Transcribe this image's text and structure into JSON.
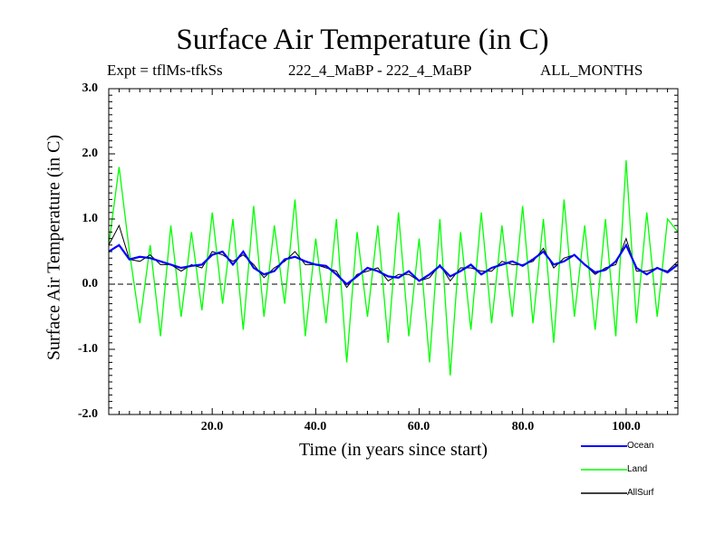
{
  "header": {
    "title": "Surface Air Temperature (in C)",
    "expt": "Expt = tflMs-tfkSs",
    "period": "222_4_MaBP - 222_4_MaBP",
    "months": "ALL_MONTHS"
  },
  "chart_data": {
    "type": "line",
    "title": "Surface Air Temperature (in C)",
    "xlabel": "Time (in years since start)",
    "ylabel": "Surface Air Temperature (in C)",
    "xlim": [
      0,
      110
    ],
    "ylim": [
      -2.0,
      3.0
    ],
    "x_ticks": [
      "20.0",
      "40.0",
      "60.0",
      "80.0",
      "100.0"
    ],
    "y_ticks": [
      "3.0",
      "2.0",
      "1.0",
      "0.0",
      "-1.0",
      "-2.0"
    ],
    "reference_line": 0.0,
    "x": [
      0,
      2,
      4,
      6,
      8,
      10,
      12,
      14,
      16,
      18,
      20,
      22,
      24,
      26,
      28,
      30,
      32,
      34,
      36,
      38,
      40,
      42,
      44,
      46,
      48,
      50,
      52,
      54,
      56,
      58,
      60,
      62,
      64,
      66,
      68,
      70,
      72,
      74,
      76,
      78,
      80,
      82,
      84,
      86,
      88,
      90,
      92,
      94,
      96,
      98,
      100,
      102,
      104,
      106,
      108,
      110
    ],
    "series": [
      {
        "name": "Ocean",
        "color": "#0000ff",
        "values": [
          0.5,
          0.6,
          0.38,
          0.42,
          0.4,
          0.35,
          0.3,
          0.25,
          0.28,
          0.3,
          0.45,
          0.5,
          0.3,
          0.5,
          0.25,
          0.15,
          0.2,
          0.38,
          0.42,
          0.35,
          0.3,
          0.28,
          0.15,
          0.0,
          0.12,
          0.25,
          0.2,
          0.12,
          0.1,
          0.2,
          0.05,
          0.15,
          0.28,
          0.12,
          0.2,
          0.3,
          0.15,
          0.25,
          0.3,
          0.35,
          0.28,
          0.38,
          0.5,
          0.3,
          0.35,
          0.45,
          0.3,
          0.18,
          0.22,
          0.35,
          0.6,
          0.25,
          0.15,
          0.25,
          0.18,
          0.3
        ]
      },
      {
        "name": "Land",
        "color": "#00ff00",
        "values": [
          0.6,
          1.8,
          0.5,
          -0.6,
          0.6,
          -0.8,
          0.9,
          -0.5,
          0.8,
          -0.4,
          1.1,
          -0.3,
          1.0,
          -0.7,
          1.2,
          -0.5,
          0.9,
          -0.3,
          1.3,
          -0.8,
          0.7,
          -0.6,
          1.0,
          -1.2,
          0.8,
          -0.5,
          0.9,
          -0.9,
          1.1,
          -0.8,
          0.7,
          -1.2,
          1.0,
          -1.4,
          0.8,
          -0.7,
          1.1,
          -0.6,
          0.9,
          -0.5,
          1.2,
          -0.6,
          1.0,
          -0.9,
          1.3,
          -0.5,
          0.9,
          -0.7,
          1.0,
          -0.8,
          1.9,
          -0.6,
          1.1,
          -0.5,
          1.0,
          0.8
        ]
      },
      {
        "name": "AllSurf",
        "color": "#000000",
        "values": [
          0.6,
          0.9,
          0.38,
          0.35,
          0.45,
          0.3,
          0.3,
          0.2,
          0.3,
          0.25,
          0.5,
          0.45,
          0.35,
          0.45,
          0.3,
          0.1,
          0.25,
          0.35,
          0.5,
          0.3,
          0.3,
          0.25,
          0.2,
          -0.05,
          0.15,
          0.2,
          0.25,
          0.05,
          0.15,
          0.15,
          0.05,
          0.1,
          0.3,
          0.05,
          0.25,
          0.25,
          0.2,
          0.2,
          0.35,
          0.3,
          0.3,
          0.35,
          0.55,
          0.25,
          0.4,
          0.45,
          0.3,
          0.15,
          0.25,
          0.3,
          0.7,
          0.2,
          0.2,
          0.25,
          0.2,
          0.35
        ]
      }
    ],
    "legend": [
      "Ocean",
      "Land",
      "AllSurf"
    ],
    "legend_position": "bottom-right"
  }
}
